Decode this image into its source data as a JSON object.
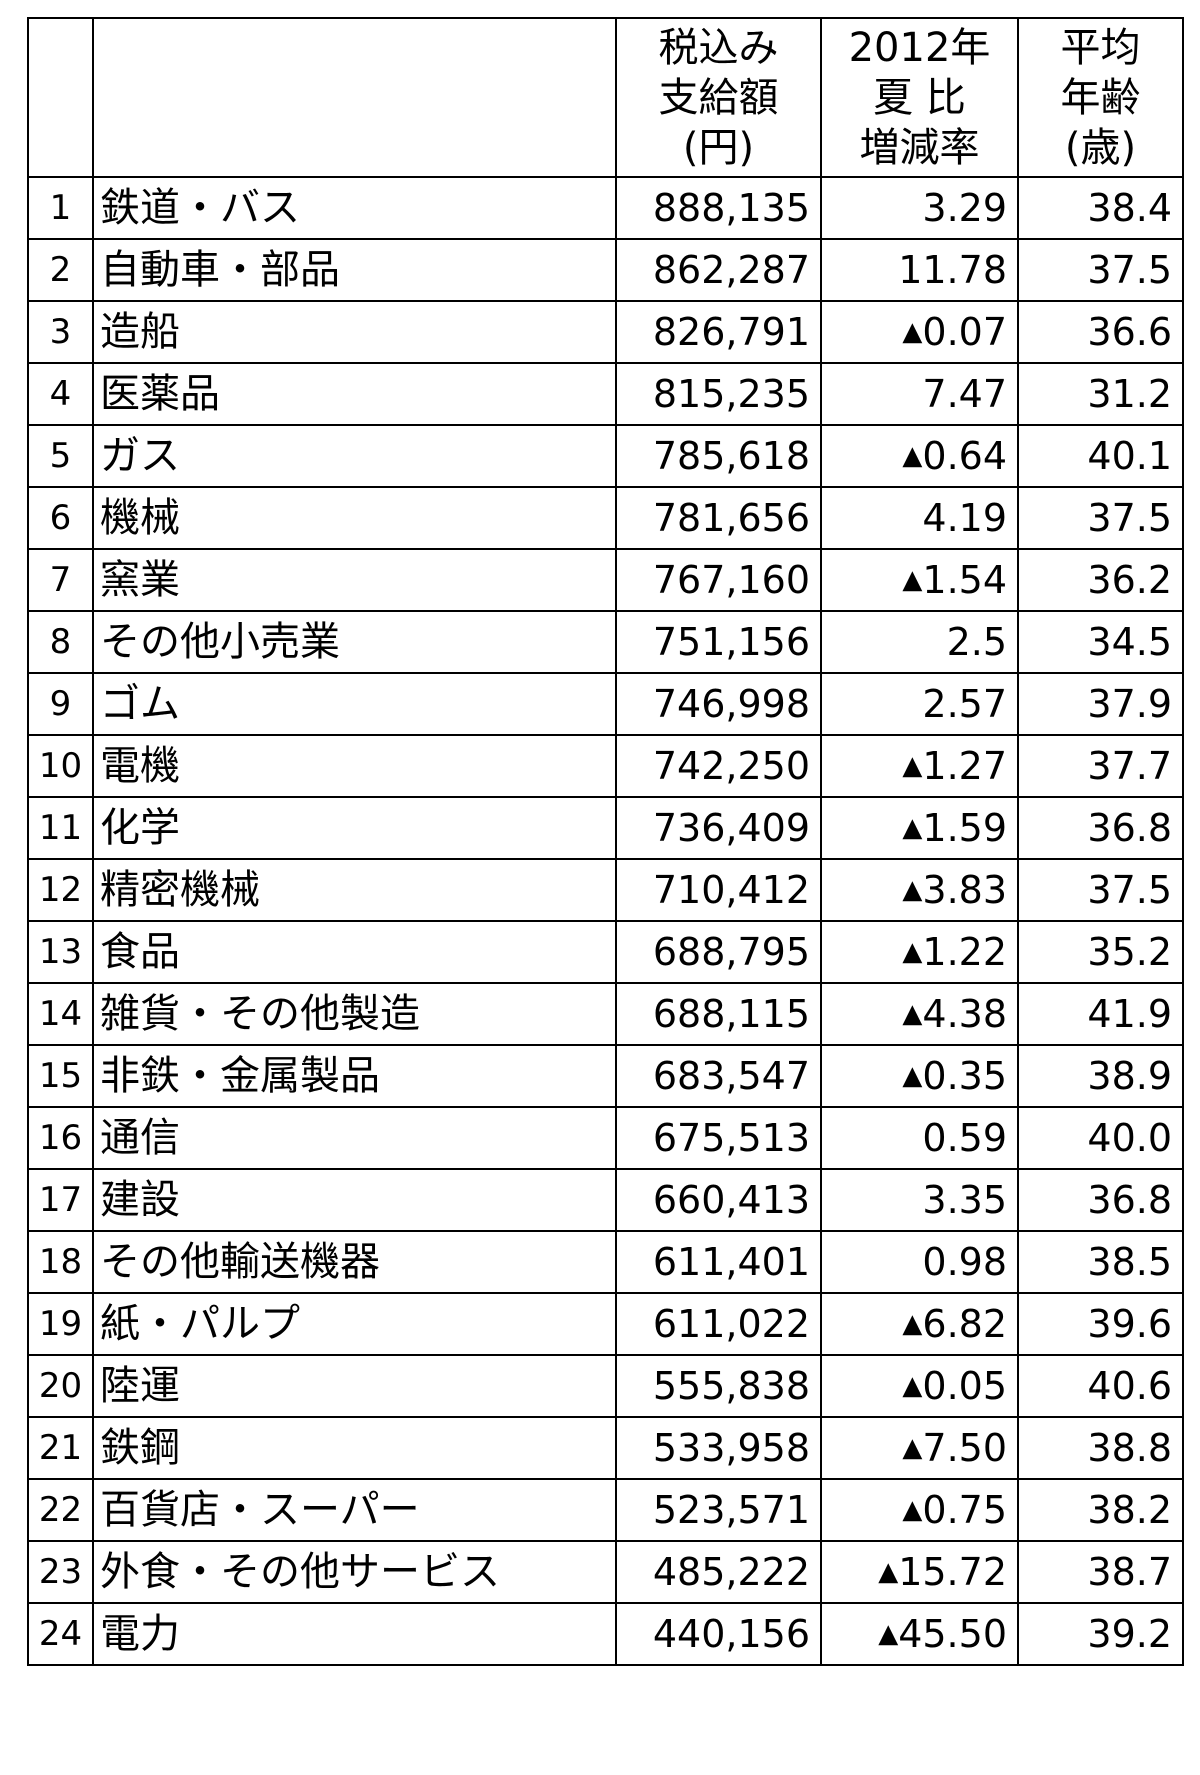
{
  "header": {
    "rank": "",
    "industry": "",
    "amount": [
      "税込み",
      "支給額",
      "(円)"
    ],
    "change": [
      "2012年",
      "夏 比",
      "増減率"
    ],
    "age": [
      "平均",
      "年齢",
      "(歳)"
    ]
  },
  "rows": [
    {
      "rank": "1",
      "industry": "鉄道・バス",
      "amount": "888,135",
      "change": "3.29",
      "change_negative": false,
      "age": "38.4"
    },
    {
      "rank": "2",
      "industry": "自動車・部品",
      "amount": "862,287",
      "change": "11.78",
      "change_negative": false,
      "age": "37.5"
    },
    {
      "rank": "3",
      "industry": "造船",
      "amount": "826,791",
      "change": "0.07",
      "change_negative": true,
      "age": "36.6"
    },
    {
      "rank": "4",
      "industry": "医薬品",
      "amount": "815,235",
      "change": "7.47",
      "change_negative": false,
      "age": "31.2"
    },
    {
      "rank": "5",
      "industry": "ガス",
      "amount": "785,618",
      "change": "0.64",
      "change_negative": true,
      "age": "40.1"
    },
    {
      "rank": "6",
      "industry": "機械",
      "amount": "781,656",
      "change": "4.19",
      "change_negative": false,
      "age": "37.5"
    },
    {
      "rank": "7",
      "industry": "窯業",
      "amount": "767,160",
      "change": "1.54",
      "change_negative": true,
      "age": "36.2"
    },
    {
      "rank": "8",
      "industry": "その他小売業",
      "amount": "751,156",
      "change": "2.5",
      "change_negative": false,
      "age": "34.5"
    },
    {
      "rank": "9",
      "industry": "ゴム",
      "amount": "746,998",
      "change": "2.57",
      "change_negative": false,
      "age": "37.9"
    },
    {
      "rank": "10",
      "industry": "電機",
      "amount": "742,250",
      "change": "1.27",
      "change_negative": true,
      "age": "37.7"
    },
    {
      "rank": "11",
      "industry": "化学",
      "amount": "736,409",
      "change": "1.59",
      "change_negative": true,
      "age": "36.8"
    },
    {
      "rank": "12",
      "industry": "精密機械",
      "amount": "710,412",
      "change": "3.83",
      "change_negative": true,
      "age": "37.5"
    },
    {
      "rank": "13",
      "industry": "食品",
      "amount": "688,795",
      "change": "1.22",
      "change_negative": true,
      "age": "35.2"
    },
    {
      "rank": "14",
      "industry": "雑貨・その他製造",
      "amount": "688,115",
      "change": "4.38",
      "change_negative": true,
      "age": "41.9"
    },
    {
      "rank": "15",
      "industry": "非鉄・金属製品",
      "amount": "683,547",
      "change": "0.35",
      "change_negative": true,
      "age": "38.9"
    },
    {
      "rank": "16",
      "industry": "通信",
      "amount": "675,513",
      "change": "0.59",
      "change_negative": false,
      "age": "40.0"
    },
    {
      "rank": "17",
      "industry": "建設",
      "amount": "660,413",
      "change": "3.35",
      "change_negative": false,
      "age": "36.8"
    },
    {
      "rank": "18",
      "industry": "その他輸送機器",
      "amount": "611,401",
      "change": "0.98",
      "change_negative": false,
      "age": "38.5"
    },
    {
      "rank": "19",
      "industry": "紙・パルプ",
      "amount": "611,022",
      "change": "6.82",
      "change_negative": true,
      "age": "39.6"
    },
    {
      "rank": "20",
      "industry": "陸運",
      "amount": "555,838",
      "change": "0.05",
      "change_negative": true,
      "age": "40.6"
    },
    {
      "rank": "21",
      "industry": "鉄鋼",
      "amount": "533,958",
      "change": "7.50",
      "change_negative": true,
      "age": "38.8"
    },
    {
      "rank": "22",
      "industry": "百貨店・スーパー",
      "amount": "523,571",
      "change": "0.75",
      "change_negative": true,
      "age": "38.2"
    },
    {
      "rank": "23",
      "industry": "外食・その他サービス",
      "amount": "485,222",
      "change": "15.72",
      "change_negative": true,
      "age": "38.7"
    },
    {
      "rank": "24",
      "industry": "電力",
      "amount": "440,156",
      "change": "45.50",
      "change_negative": true,
      "age": "39.2"
    }
  ]
}
